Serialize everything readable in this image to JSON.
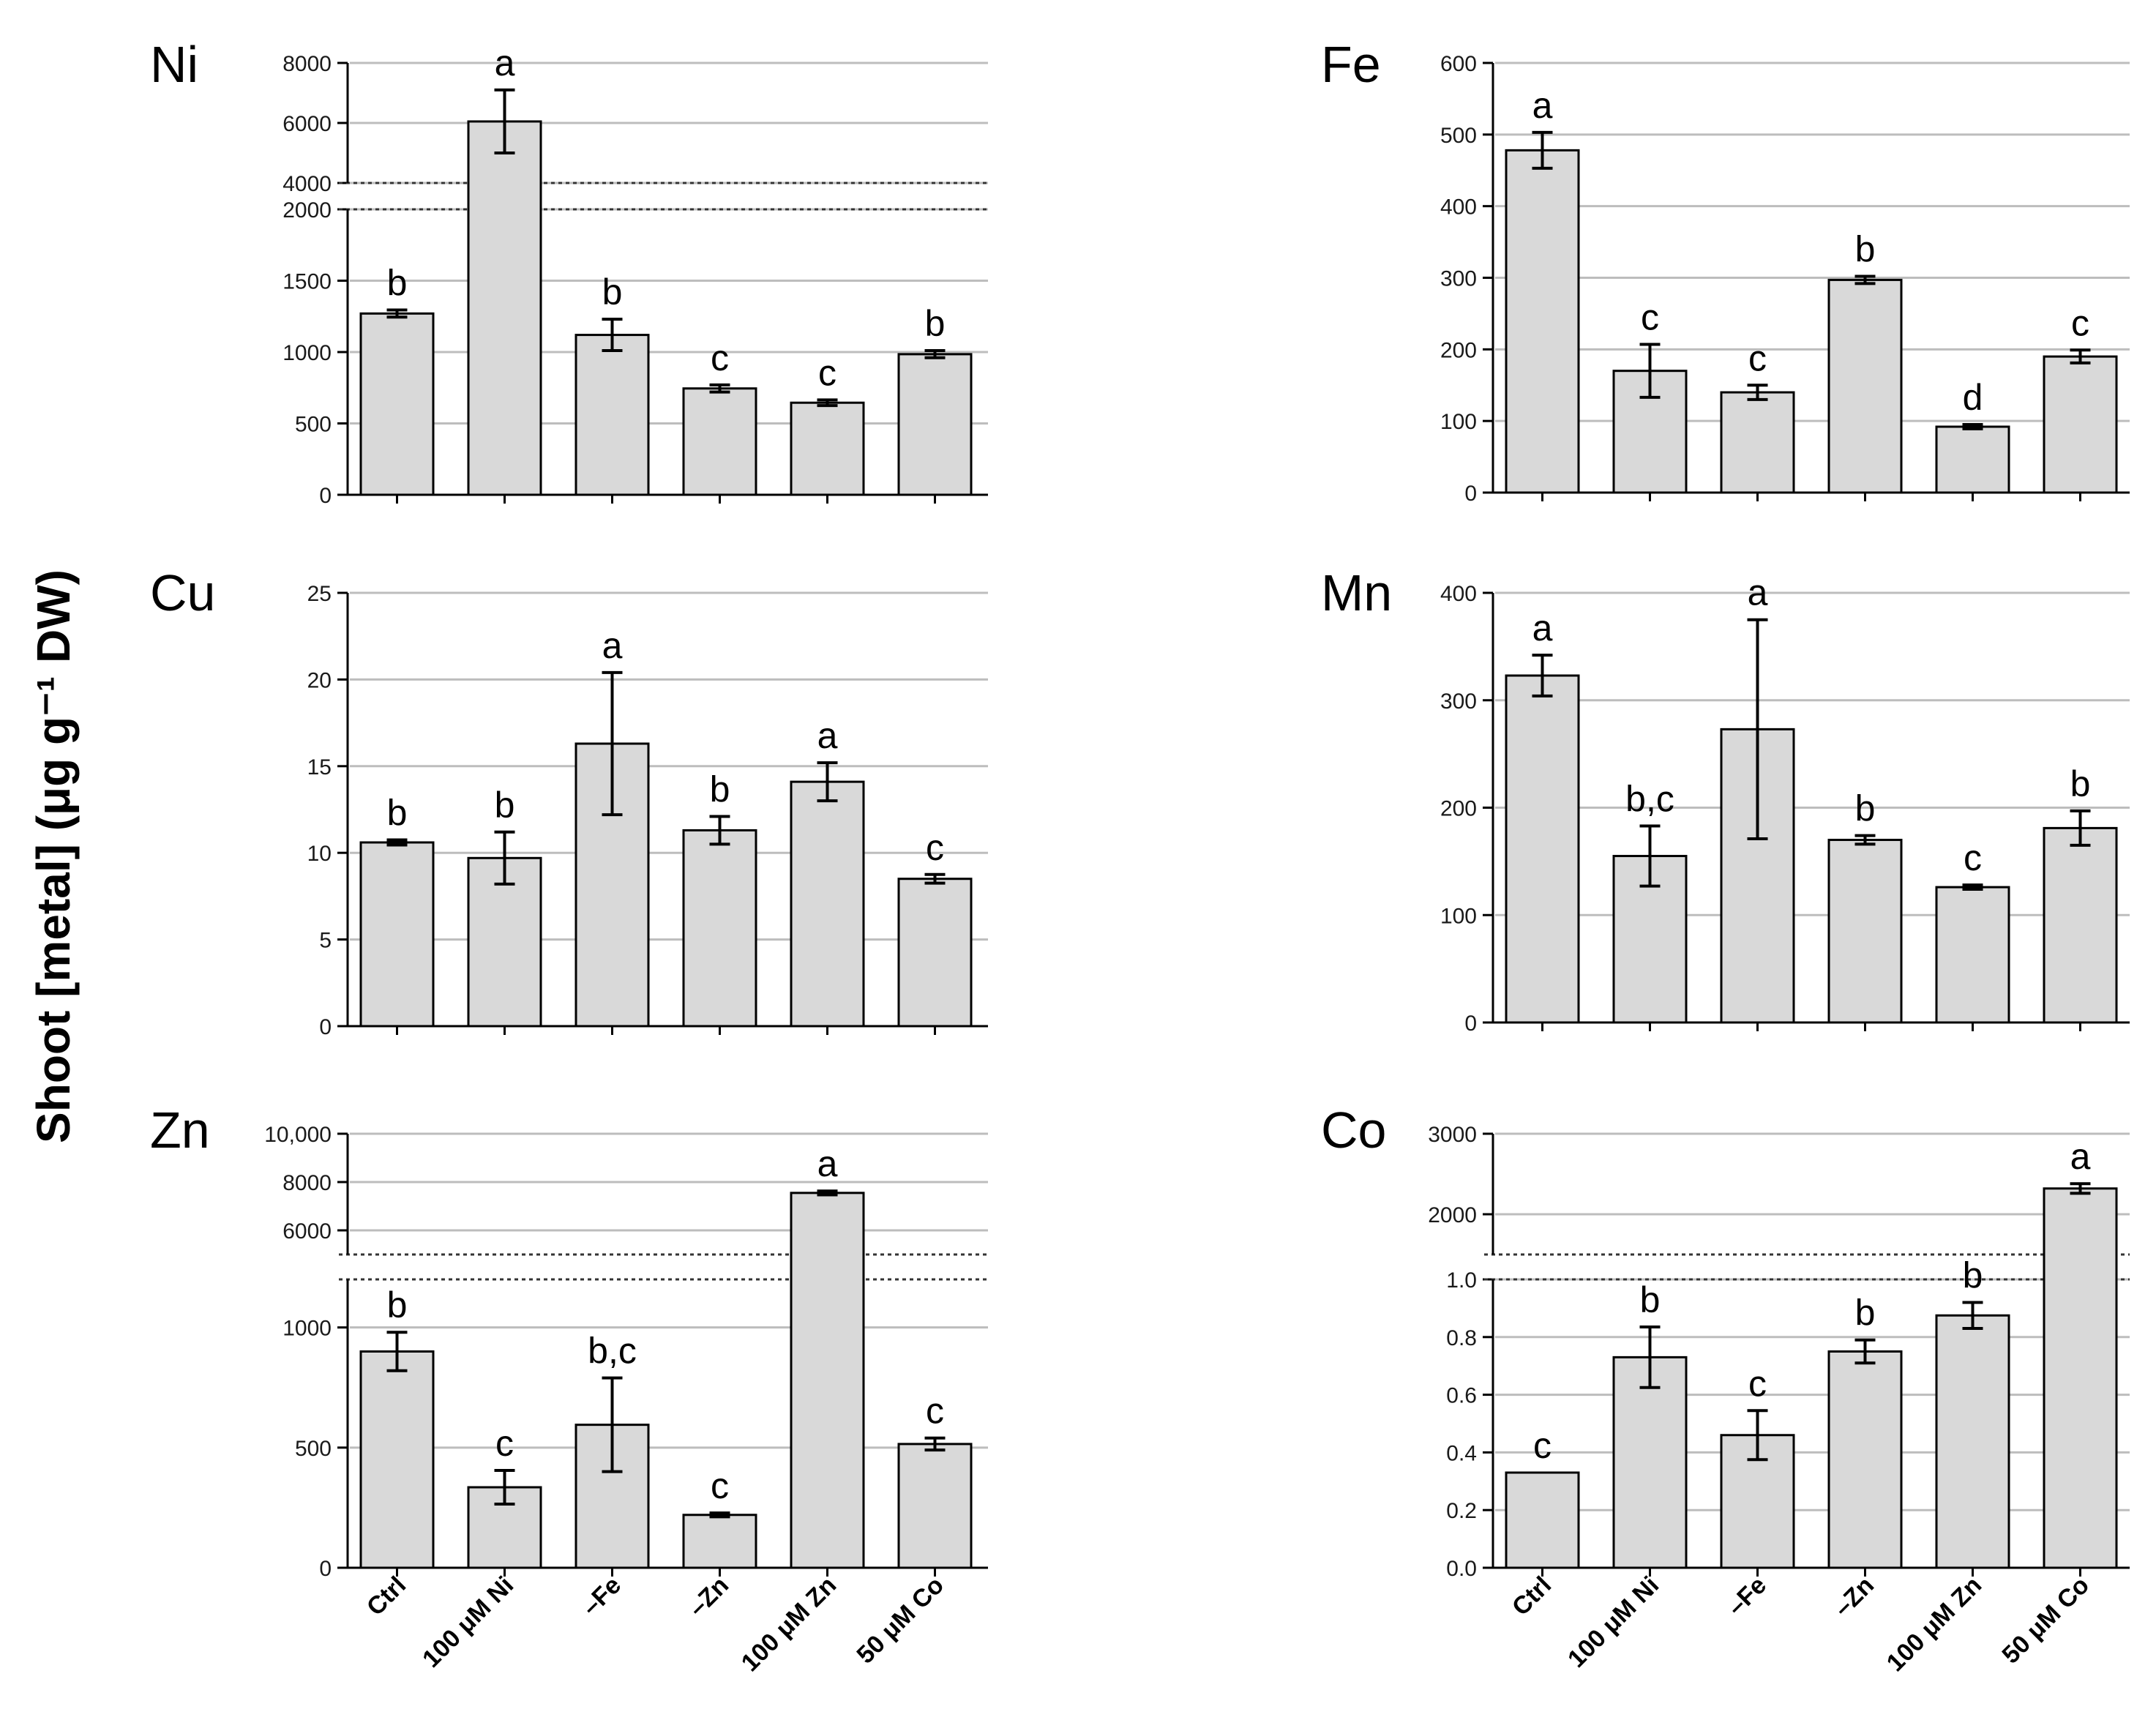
{
  "figure": {
    "y_axis_label": "Shoot [metal] (μg g⁻¹ DW)",
    "categories": [
      "Ctrl",
      "100 μM Ni",
      "–Fe",
      "–Zn",
      "100 μM Zn",
      "50 μM Co"
    ],
    "colors": {
      "bar_fill": "#d9d9d9",
      "bar_stroke": "#000000",
      "grid": "#bdbdbd",
      "axis": "#000000"
    }
  },
  "chart_data": [
    {
      "type": "bar",
      "title": "Ni",
      "broken_axis": true,
      "categories": [
        "Ctrl",
        "100 μM Ni",
        "–Fe",
        "–Zn",
        "100 μM Zn",
        "50 μM Co"
      ],
      "values": [
        1270,
        6050,
        1120,
        745,
        645,
        985
      ],
      "errors": [
        25,
        1050,
        110,
        25,
        20,
        25
      ],
      "letters": [
        "b",
        "a",
        "b",
        "c",
        "c",
        "b"
      ],
      "lower_ylim": [
        0,
        2000
      ],
      "lower_ticks": [
        "0",
        "500",
        "1000",
        "1500",
        "2000"
      ],
      "upper_ylim": [
        4000,
        8000
      ],
      "upper_ticks": [
        "4000",
        "6000",
        "8000"
      ]
    },
    {
      "type": "bar",
      "title": "Fe",
      "broken_axis": false,
      "categories": [
        "Ctrl",
        "100 μM Ni",
        "–Fe",
        "–Zn",
        "100 μM Zn",
        "50 μM Co"
      ],
      "values": [
        478,
        170,
        140,
        297,
        92,
        190
      ],
      "errors": [
        25,
        37,
        10,
        5,
        3,
        9
      ],
      "letters": [
        "a",
        "c",
        "c",
        "b",
        "d",
        "c"
      ],
      "ylim": [
        0,
        600
      ],
      "ticks": [
        "0",
        "100",
        "200",
        "300",
        "400",
        "500",
        "600"
      ]
    },
    {
      "type": "bar",
      "title": "Cu",
      "broken_axis": false,
      "categories": [
        "Ctrl",
        "100 μM Ni",
        "–Fe",
        "–Zn",
        "100 μM Zn",
        "50 μM Co"
      ],
      "values": [
        10.6,
        9.7,
        16.3,
        11.3,
        14.1,
        8.5
      ],
      "errors": [
        0.15,
        1.5,
        4.1,
        0.8,
        1.1,
        0.25
      ],
      "letters": [
        "b",
        "b",
        "a",
        "b",
        "a",
        "c"
      ],
      "ylim": [
        0,
        25
      ],
      "ticks": [
        "0",
        "5",
        "10",
        "15",
        "20",
        "25"
      ]
    },
    {
      "type": "bar",
      "title": "Mn",
      "broken_axis": false,
      "categories": [
        "Ctrl",
        "100 μM Ni",
        "–Fe",
        "–Zn",
        "100 μM Zn",
        "50 μM Co"
      ],
      "values": [
        323,
        155,
        273,
        170,
        126,
        181
      ],
      "errors": [
        19,
        28,
        102,
        4,
        2,
        16
      ],
      "letters": [
        "a",
        "b,c",
        "a",
        "b",
        "c",
        "b"
      ],
      "ylim": [
        0,
        400
      ],
      "ticks": [
        "0",
        "100",
        "200",
        "300",
        "400"
      ]
    },
    {
      "type": "bar",
      "title": "Zn",
      "broken_axis": true,
      "categories": [
        "Ctrl",
        "100 μM Ni",
        "–Fe",
        "–Zn",
        "100 μM Zn",
        "50 μM Co"
      ],
      "values": [
        900,
        335,
        595,
        220,
        7550,
        515
      ],
      "errors": [
        80,
        70,
        195,
        8,
        80,
        25
      ],
      "letters": [
        "b",
        "c",
        "b,c",
        "c",
        "a",
        "c"
      ],
      "lower_ylim": [
        0,
        1200
      ],
      "lower_ticks": [
        "0",
        "500",
        "1000"
      ],
      "upper_ylim": [
        5000,
        10000
      ],
      "upper_ticks": [
        "6000",
        "8000",
        "10,000"
      ]
    },
    {
      "type": "bar",
      "title": "Co",
      "broken_axis": true,
      "categories": [
        "Ctrl",
        "100 μM Ni",
        "–Fe",
        "–Zn",
        "100 μM Zn",
        "50 μM Co"
      ],
      "values": [
        0.33,
        0.73,
        0.46,
        0.75,
        0.875,
        2320
      ],
      "errors": [
        0,
        0.105,
        0.085,
        0.04,
        0.045,
        60
      ],
      "letters": [
        "c",
        "b",
        "c",
        "b",
        "b",
        "a"
      ],
      "lower_ylim": [
        0,
        1.0
      ],
      "lower_ticks": [
        "0.0",
        "0.2",
        "0.4",
        "0.6",
        "0.8",
        "1.0"
      ],
      "upper_ylim": [
        1500,
        3000
      ],
      "upper_ticks": [
        "2000",
        "3000"
      ]
    }
  ]
}
